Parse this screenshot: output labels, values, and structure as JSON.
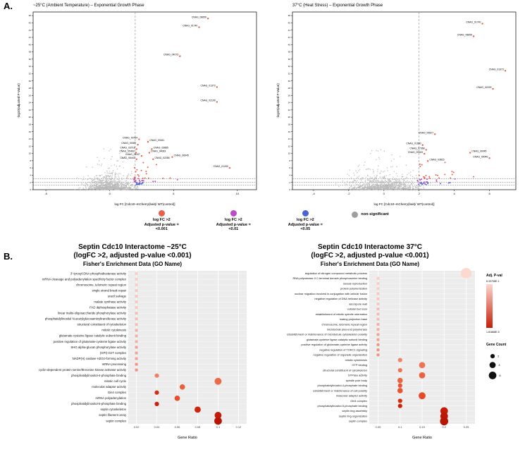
{
  "panel_a": {
    "label": "A.",
    "legend": [
      {
        "color": "#e8604c",
        "lines": [
          "log FC >2",
          "Adjusted p-value =",
          "<0.001"
        ]
      },
      {
        "color": "#bd4bc8",
        "lines": [
          "log FC >2",
          "Adjusted p-value =",
          "<0.01"
        ]
      },
      {
        "color": "#4a62d8",
        "lines": [
          "log FC >2",
          "Adjusted p-value =",
          "<0.05"
        ]
      },
      {
        "color": "#9e9e9e",
        "lines": [
          "non-significant"
        ],
        "inline": true
      }
    ]
  },
  "panel_b": {
    "label": "B."
  },
  "chart_data": [
    {
      "type": "scatter",
      "subtype": "volcano",
      "title": "~25°C (Ambient Temperature) – Exponential Growth Phase",
      "xlabel": "log FC [Cdc10–mCherry(bait)/ WT(control)]",
      "ylabel": "-log10(adjusted P-Value)",
      "xlim": [
        -6,
        11.5
      ],
      "ylim": [
        0,
        49
      ],
      "xticks": [
        -5,
        0,
        5,
        10
      ],
      "ytick_step": 2,
      "threshold_x": 2,
      "threshold_y": [
        1.3,
        2,
        3
      ],
      "colors": {
        "sig001": "#e8604c",
        "sig01": "#bd4bc8",
        "sig05": "#4a62d8",
        "ns": "#b8b8b8"
      },
      "seed": 11,
      "n_background": 850,
      "labeled_points": [
        {
          "g": "CNAG_06659",
          "x": 7.7,
          "y": 47.2
        },
        {
          "g": "CNAG_01740",
          "x": 7.0,
          "y": 44.8
        },
        {
          "g": "CNAG_04073",
          "x": 5.5,
          "y": 36.8
        },
        {
          "g": "CNAG_01373",
          "x": 8.4,
          "y": 28.3
        },
        {
          "g": "CNAG_02199",
          "x": 8.4,
          "y": 24.2
        },
        {
          "g": "CNAG_00764",
          "x": 2.3,
          "y": 13.9
        },
        {
          "g": "CNAG_03341",
          "x": 3.0,
          "y": 13.2,
          "la": "s"
        },
        {
          "g": "CNAG_00087",
          "x": 2.2,
          "y": 12.4
        },
        {
          "g": "CNAG_03718",
          "x": 2.1,
          "y": 11.2
        },
        {
          "g": "CNAG_03885",
          "x": 3.3,
          "y": 11.2,
          "la": "s"
        },
        {
          "g": "CNAG_05463",
          "x": 2.05,
          "y": 10.2
        },
        {
          "g": "CNAG_04063",
          "x": 3.1,
          "y": 10.2,
          "la": "s"
        },
        {
          "g": "CNAG_01107",
          "x": 2.5,
          "y": 9.3
        },
        {
          "g": "CNAG_06443",
          "x": 2.1,
          "y": 8.4
        },
        {
          "g": "CNAG_02286",
          "x": 3.4,
          "y": 8.4,
          "la": "s"
        },
        {
          "g": "CNAG_06945",
          "x": 4.9,
          "y": 9.0,
          "la": "s"
        },
        {
          "g": "CNAG_01430",
          "x": 9.4,
          "y": 6.0
        }
      ]
    },
    {
      "type": "scatter",
      "subtype": "volcano",
      "title": "37°C (Heat Stress) – Exponential Growth Phase",
      "xlabel": "log FC [Cdc10–mCherry(bait)/ WT(control)]",
      "ylabel": "-log10(adjusted P-Value)",
      "xlim": [
        -5.2,
        7.5
      ],
      "ylim": [
        0,
        49
      ],
      "xticks": [
        -4,
        -2,
        0,
        2,
        4,
        6
      ],
      "ytick_step": 2,
      "threshold_x": 2,
      "threshold_y": [
        1.3,
        2,
        3
      ],
      "colors": {
        "sig001": "#e8604c",
        "sig01": "#bd4bc8",
        "sig05": "#4a62d8",
        "ns": "#b8b8b8"
      },
      "seed": 23,
      "n_background": 900,
      "labeled_points": [
        {
          "g": "CNAG_01740",
          "x": 5.6,
          "y": 45.8
        },
        {
          "g": "CNAG_06659",
          "x": 5.1,
          "y": 42.3
        },
        {
          "g": "CNAG_01373",
          "x": 6.9,
          "y": 32.8
        },
        {
          "g": "CNAG_02199",
          "x": 6.2,
          "y": 27.8
        },
        {
          "g": "CNAG_00627",
          "x": 2.9,
          "y": 15.3
        },
        {
          "g": "CNAG_01660",
          "x": 2.2,
          "y": 12.3
        },
        {
          "g": "CNAG_07368",
          "x": 2.4,
          "y": 11.0
        },
        {
          "g": "CNAG_05163",
          "x": 2.3,
          "y": 9.9
        },
        {
          "g": "CNAG_00045",
          "x": 4.9,
          "y": 10.2,
          "la": "s"
        },
        {
          "g": "CNAG_00046",
          "x": 6.0,
          "y": 8.7
        },
        {
          "g": "CNAG_03815",
          "x": 2.5,
          "y": 7.9,
          "la": "s"
        }
      ]
    },
    {
      "type": "scatter",
      "subtype": "dotplot",
      "title": "Septin Cdc10 Interactome ~25°C",
      "subtitle": "(logFC >2, adjusted p-value <0.001)",
      "subtitle2": "Fisher's Enrichment Data (GO Name)",
      "xlabel": "Gene Ratio",
      "xlim": [
        0.012,
        0.128
      ],
      "xticks": [
        0.02,
        0.04,
        0.06,
        0.08,
        0.1,
        0.12
      ],
      "rows": [
        {
          "label": "3'-tyrosyl-DNA phosphodiesterase activity",
          "ratio": 0.02,
          "count": 1,
          "color": "#f9cdc3"
        },
        {
          "label": "mRNA cleavage and polyadenylation specificity factor complex",
          "ratio": 0.02,
          "count": 1,
          "color": "#f9cdc3"
        },
        {
          "label": "chromosome, telomeric repeat region",
          "ratio": 0.02,
          "count": 1,
          "color": "#f9cdc3"
        },
        {
          "label": "single strand break repair",
          "ratio": 0.02,
          "count": 1,
          "color": "#f8c6bb"
        },
        {
          "label": "uracil salvage",
          "ratio": 0.02,
          "count": 1,
          "color": "#f8c6bb"
        },
        {
          "label": "malate synthase activity",
          "ratio": 0.02,
          "count": 1,
          "color": "#f8c6bb"
        },
        {
          "label": "FAD diphosphatase activity",
          "ratio": 0.02,
          "count": 1,
          "color": "#f8c6bb"
        },
        {
          "label": "linear malto-oligosaccharide phosphorylase activity",
          "ratio": 0.02,
          "count": 1,
          "color": "#f6bcae"
        },
        {
          "label": "phosphatidylinositol N-acetylglucosaminyltransferase activity",
          "ratio": 0.02,
          "count": 1,
          "color": "#f6bcae"
        },
        {
          "label": "structural constituent of cytoskeleton",
          "ratio": 0.02,
          "count": 1,
          "color": "#f6bcae"
        },
        {
          "label": "mitotic cytokinesis",
          "ratio": 0.02,
          "count": 1,
          "color": "#f4b09f"
        },
        {
          "label": "glutamate-cysteine ligase catalytic subunit binding",
          "ratio": 0.02,
          "count": 1,
          "color": "#f4b09f"
        },
        {
          "label": "positive regulation of glutamate-cysteine ligase activity",
          "ratio": 0.02,
          "count": 1,
          "color": "#f4b09f"
        },
        {
          "label": "SHG alpha-glucan phosphorylase activity",
          "ratio": 0.02,
          "count": 1,
          "color": "#f2a38f"
        },
        {
          "label": "(GPI)-GnT complex",
          "ratio": 0.02,
          "count": 1,
          "color": "#f2a38f"
        },
        {
          "label": "NADP(H) oxidase H2O2-forming activity",
          "ratio": 0.02,
          "count": 1,
          "color": "#f2a38f"
        },
        {
          "label": "mRNA processing",
          "ratio": 0.02,
          "count": 1,
          "color": "#f0957e"
        },
        {
          "label": "cyclin-dependent protein serine/threonine kinase activator activity",
          "ratio": 0.02,
          "count": 1,
          "color": "#f0957e"
        },
        {
          "label": "phosphatidylinositol-4-phosphate binding",
          "ratio": 0.04,
          "count": 2,
          "color": "#ed8264"
        },
        {
          "label": "mitotic cell cycle",
          "ratio": 0.1,
          "count": 5,
          "color": "#ec6a45"
        },
        {
          "label": "molecular adaptor activity",
          "ratio": 0.065,
          "count": 3,
          "color": "#ea5f3a"
        },
        {
          "label": "Gin4 complex",
          "ratio": 0.04,
          "count": 2,
          "color": "#d42e12"
        },
        {
          "label": "mRNA polyadenylation",
          "ratio": 0.06,
          "count": 3,
          "color": "#e84f2c"
        },
        {
          "label": "phosphatidylinositol-5-phosphate binding",
          "ratio": 0.04,
          "count": 2,
          "color": "#cc2209"
        },
        {
          "label": "septin cytoskeleton",
          "ratio": 0.08,
          "count": 4,
          "color": "#d0250c"
        },
        {
          "label": "septin filament array",
          "ratio": 0.1,
          "count": 5,
          "color": "#c21d08"
        },
        {
          "label": "septin complex",
          "ratio": 0.1,
          "count": 6,
          "color": "#b81605"
        }
      ]
    },
    {
      "type": "scatter",
      "subtype": "dotplot",
      "title": "Septin Cdc10 Interactome 37°C",
      "subtitle": "(logFC >2, adjusted p-value <0.001)",
      "subtitle2": "Fisher's Enrichment Data (GO Name)",
      "xlabel": "Gene Ratio",
      "xlim": [
        0.03,
        0.27
      ],
      "xticks": [
        0.05,
        0.1,
        0.15,
        0.2,
        0.25
      ],
      "legend": {
        "pval_title": "Adj. P-val",
        "pval_max": "8.33708E-1",
        "pval_min": "1.81868E-5",
        "count_title": "Gene Count",
        "count_items": [
          {
            "label": "2",
            "count": 2
          },
          {
            "label": "4",
            "count": 4
          },
          {
            "label": "6",
            "count": 6
          }
        ]
      },
      "rows": [
        {
          "label": "regulation of nitrogen compound metabolic process",
          "ratio": 0.25,
          "count": 12,
          "color": "#fbd9d0"
        },
        {
          "label": "RNA polymerase II C-terminal domain phosphoserine binding",
          "ratio": 0.05,
          "count": 1,
          "color": "#f9cdc3"
        },
        {
          "label": "sexual reproduction",
          "ratio": 0.05,
          "count": 1,
          "color": "#f9cdc3"
        },
        {
          "label": "protein polymerization",
          "ratio": 0.05,
          "count": 1,
          "color": "#f9cdc3"
        },
        {
          "label": "nuclear migration involved in conjugation with cellular fusion",
          "ratio": 0.05,
          "count": 1,
          "color": "#f8c6bb"
        },
        {
          "label": "negative regulation of DNA helicase activity",
          "ratio": 0.05,
          "count": 1,
          "color": "#f8c6bb"
        },
        {
          "label": "ascospore wall",
          "ratio": 0.05,
          "count": 1,
          "color": "#f8c6bb"
        },
        {
          "label": "cellular bud scar",
          "ratio": 0.05,
          "count": 1,
          "color": "#f6bcae"
        },
        {
          "label": "establishment of mitotic spindle orientation",
          "ratio": 0.05,
          "count": 1,
          "color": "#f6bcae"
        },
        {
          "label": "mating projection base",
          "ratio": 0.05,
          "count": 1,
          "color": "#f6bcae"
        },
        {
          "label": "chromosome, telomeric repeat region",
          "ratio": 0.05,
          "count": 1,
          "color": "#f4b09f"
        },
        {
          "label": "microtubule plus-end polymerase",
          "ratio": 0.05,
          "count": 1,
          "color": "#f4b09f"
        },
        {
          "label": "establishment or maintenance of microtubule cytoskeleton polarity",
          "ratio": 0.05,
          "count": 1,
          "color": "#f2a38f"
        },
        {
          "label": "glutamate-cysteine ligase catalytic subunit binding",
          "ratio": 0.05,
          "count": 1,
          "color": "#f2a38f"
        },
        {
          "label": "positive regulation of glutamate-cysteine ligase activity",
          "ratio": 0.05,
          "count": 1,
          "color": "#f0957e"
        },
        {
          "label": "negative regulation of TORC1 signaling",
          "ratio": 0.05,
          "count": 1,
          "color": "#f0957e"
        },
        {
          "label": "negative regulation of organelle organization",
          "ratio": 0.05,
          "count": 1,
          "color": "#f0957e"
        },
        {
          "label": "mitotic cytokinesis",
          "ratio": 0.1,
          "count": 2,
          "color": "#ee8468"
        },
        {
          "label": "GTP binding",
          "ratio": 0.15,
          "count": 4,
          "color": "#ec7354"
        },
        {
          "label": "structural constituent of cytoskeleton",
          "ratio": 0.1,
          "count": 2,
          "color": "#ec7354"
        },
        {
          "label": "GTPase activity",
          "ratio": 0.15,
          "count": 4,
          "color": "#ea6243"
        },
        {
          "label": "spindle pole body",
          "ratio": 0.1,
          "count": 3,
          "color": "#ea6243"
        },
        {
          "label": "phosphatidylinositol-4-phosphate binding",
          "ratio": 0.1,
          "count": 2,
          "color": "#e85534"
        },
        {
          "label": "establishment or maintenance of cell polarity",
          "ratio": 0.1,
          "count": 3,
          "color": "#e85534"
        },
        {
          "label": "molecular adaptor activity",
          "ratio": 0.15,
          "count": 5,
          "color": "#e64a28"
        },
        {
          "label": "Gin4 complex",
          "ratio": 0.1,
          "count": 2,
          "color": "#d42e12"
        },
        {
          "label": "phosphatidylinositol-5-phosphate binding",
          "ratio": 0.1,
          "count": 2,
          "color": "#cc2209"
        },
        {
          "label": "septin ring assembly",
          "ratio": 0.2,
          "count": 6,
          "color": "#c21d08"
        },
        {
          "label": "septin ring organization",
          "ratio": 0.2,
          "count": 6,
          "color": "#bb1906"
        },
        {
          "label": "septin complex",
          "ratio": 0.2,
          "count": 7,
          "color": "#b81605"
        }
      ]
    }
  ]
}
